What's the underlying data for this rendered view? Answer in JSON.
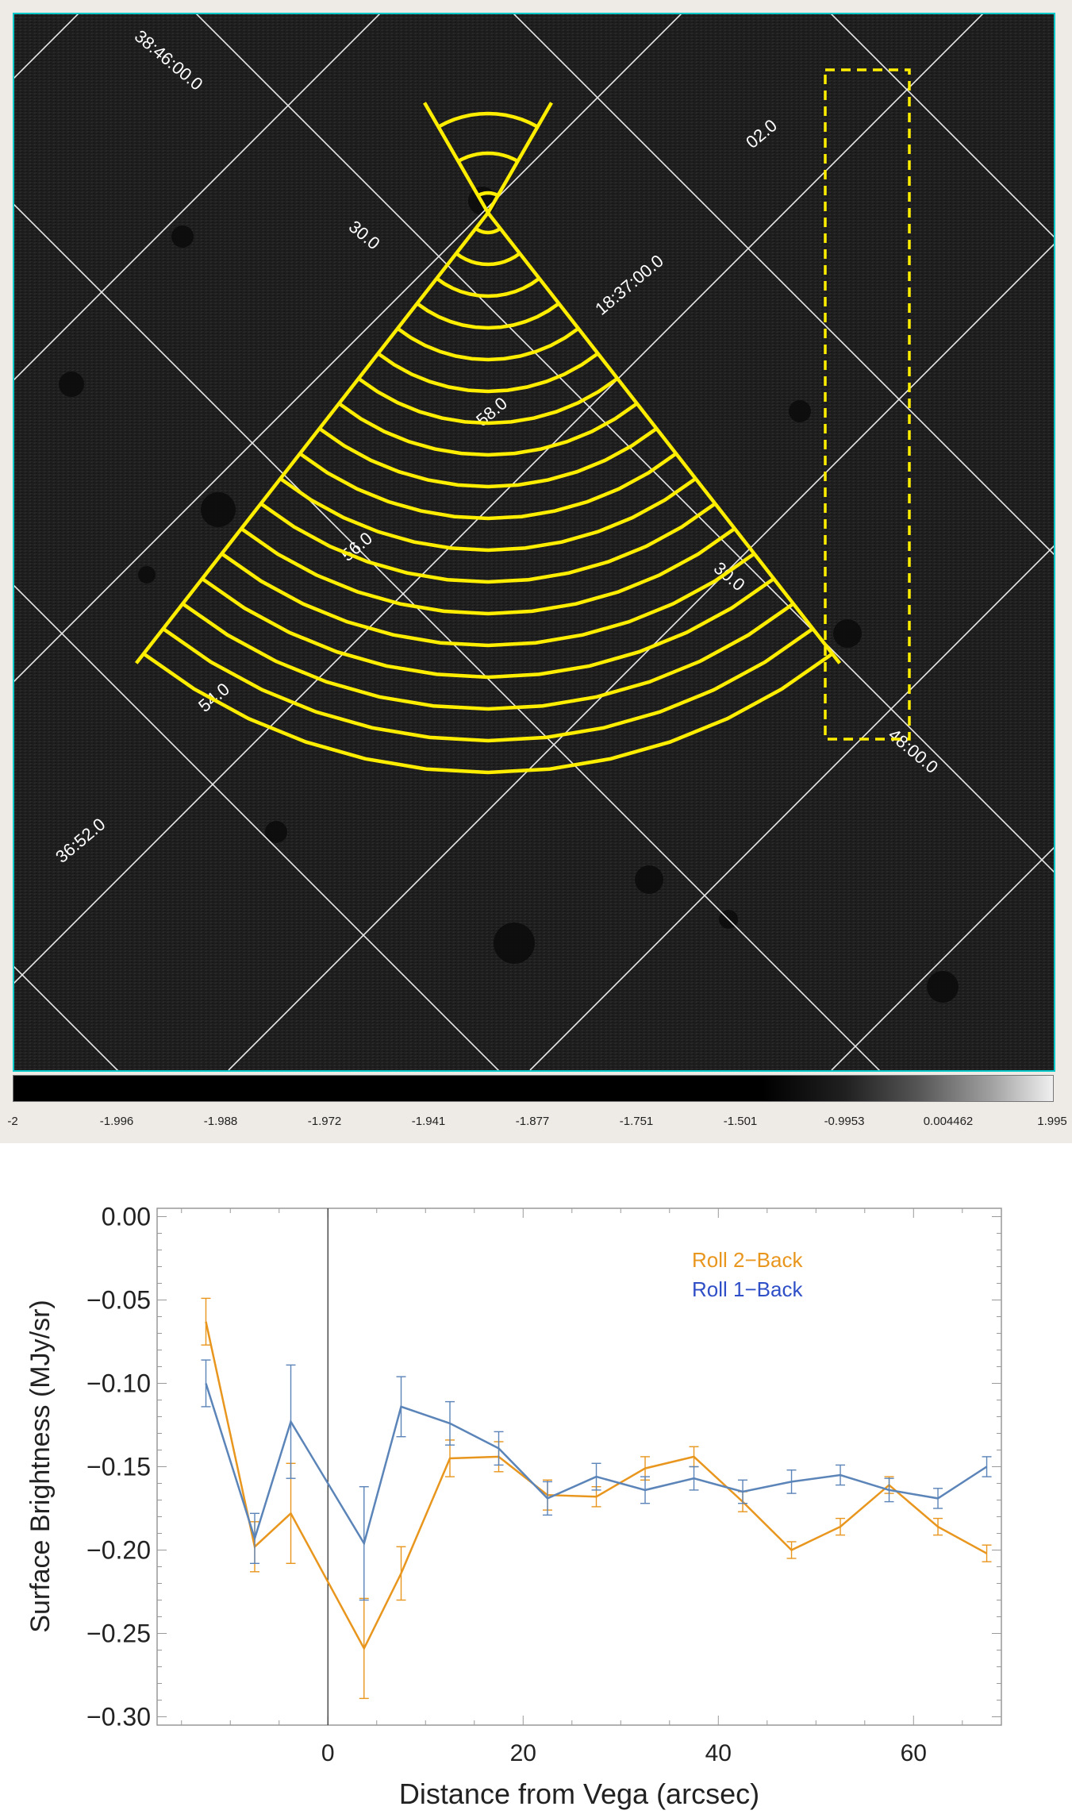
{
  "sky_image": {
    "coordinate_labels": [
      "38:46:00.0",
      "30.0",
      "18:37:00.0",
      "02.0",
      "58.0",
      "56.0",
      "30.0",
      "54.0",
      "48:00.0",
      "36:52.0"
    ],
    "overlay_color": "#ffee00",
    "grid_color": "#ffffff",
    "frame_color": "#00c8c8"
  },
  "colorbar": {
    "ticks": [
      "-2",
      "-1.996",
      "-1.988",
      "-1.972",
      "-1.941",
      "-1.877",
      "-1.751",
      "-1.501",
      "-0.9953",
      "0.004462",
      "1.995"
    ]
  },
  "chart_data": {
    "type": "line",
    "xlabel": "Distance from Vega (arcsec)",
    "ylabel": "Surface Brightness (MJy/sr)",
    "xlim": [
      -17.5,
      69
    ],
    "ylim": [
      -0.305,
      0.005
    ],
    "xticks": [
      0,
      20,
      40,
      60
    ],
    "yticks": [
      0.0,
      -0.05,
      -0.1,
      -0.15,
      -0.2,
      -0.25,
      -0.3
    ],
    "ytick_labels": [
      "0.00",
      "−0.05",
      "−0.10",
      "−0.15",
      "−0.20",
      "−0.25",
      "−0.30"
    ],
    "vline_x": 0,
    "legend_position": "top-right",
    "series": [
      {
        "name": "Roll 2−Back",
        "color": "#e8961e",
        "x": [
          -12.5,
          -7.5,
          -3.8,
          3.7,
          7.5,
          12.5,
          17.5,
          22.5,
          27.5,
          32.5,
          37.5,
          42.5,
          47.5,
          52.5,
          57.5,
          62.5,
          67.5
        ],
        "y": [
          -0.063,
          -0.198,
          -0.178,
          -0.259,
          -0.214,
          -0.145,
          -0.144,
          -0.167,
          -0.168,
          -0.151,
          -0.144,
          -0.171,
          -0.2,
          -0.186,
          -0.161,
          -0.186,
          -0.202
        ],
        "err": [
          0.014,
          0.015,
          0.03,
          0.03,
          0.016,
          0.011,
          0.009,
          0.009,
          0.006,
          0.007,
          0.006,
          0.006,
          0.005,
          0.005,
          0.005,
          0.005,
          0.005
        ]
      },
      {
        "name": "Roll 1−Back",
        "color": "#5b84b8",
        "x": [
          -12.5,
          -7.5,
          -3.8,
          3.7,
          7.5,
          12.5,
          17.5,
          22.5,
          27.5,
          32.5,
          37.5,
          42.5,
          47.5,
          52.5,
          57.5,
          62.5,
          67.5
        ],
        "y": [
          -0.1,
          -0.193,
          -0.123,
          -0.196,
          -0.114,
          -0.124,
          -0.139,
          -0.169,
          -0.156,
          -0.164,
          -0.157,
          -0.165,
          -0.159,
          -0.155,
          -0.164,
          -0.169,
          -0.15
        ],
        "err": [
          0.014,
          0.015,
          0.034,
          0.034,
          0.018,
          0.013,
          0.01,
          0.01,
          0.008,
          0.008,
          0.007,
          0.007,
          0.007,
          0.006,
          0.007,
          0.006,
          0.006
        ]
      }
    ]
  }
}
